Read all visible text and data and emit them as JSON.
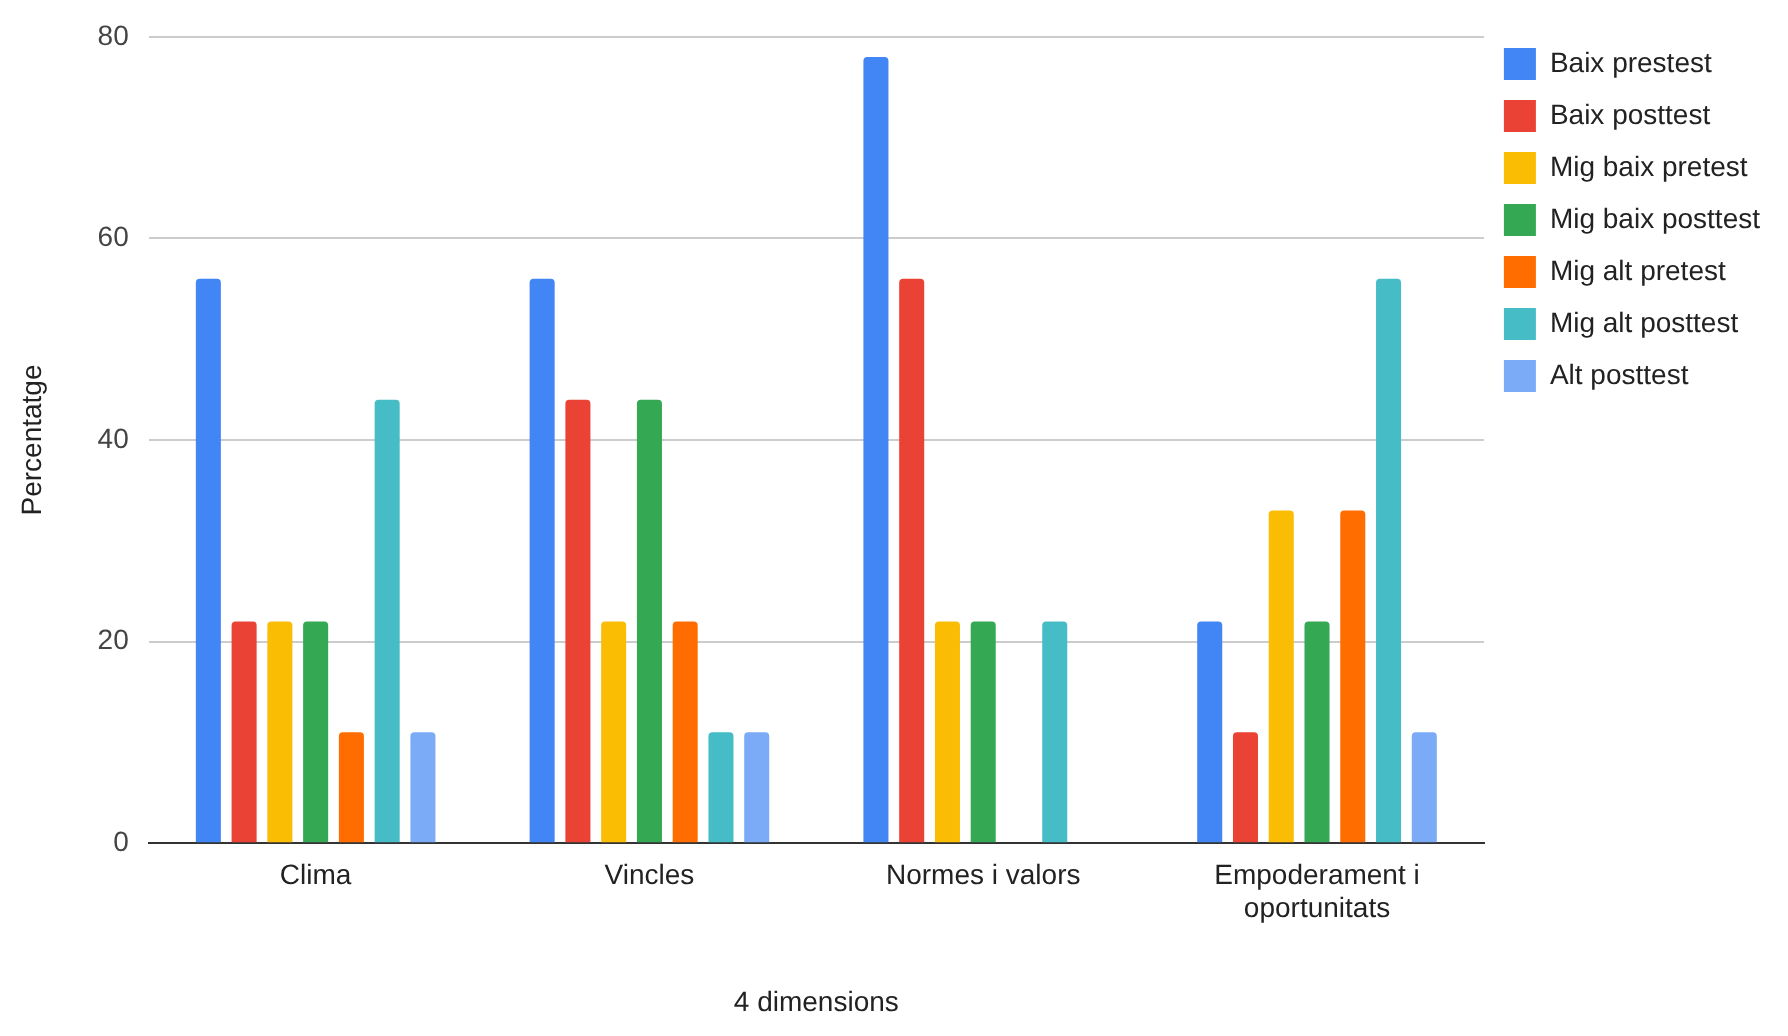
{
  "chart_data": {
    "type": "bar",
    "xlabel": "4 dimensions",
    "ylabel": "Percentatge",
    "categories": [
      "Clima",
      "Vincles",
      "Normes i valors",
      "Empoderament i oportunitats"
    ],
    "series": [
      {
        "name": "Baix prestest",
        "color": "#4285f4",
        "values": [
          56,
          56,
          78,
          22
        ]
      },
      {
        "name": "Baix posttest",
        "color": "#ea4335",
        "values": [
          22,
          44,
          56,
          11
        ]
      },
      {
        "name": "Mig baix pretest",
        "color": "#fbbc04",
        "values": [
          22,
          22,
          22,
          33
        ]
      },
      {
        "name": "Mig baix posttest",
        "color": "#34a853",
        "values": [
          22,
          44,
          22,
          22
        ]
      },
      {
        "name": "Mig alt pretest",
        "color": "#ff6d01",
        "values": [
          11,
          22,
          0,
          33
        ]
      },
      {
        "name": "Mig alt posttest",
        "color": "#46bdc6",
        "values": [
          44,
          11,
          22,
          56
        ]
      },
      {
        "name": "Alt posttest",
        "color": "#7baaf7",
        "values": [
          11,
          11,
          0,
          11
        ]
      }
    ],
    "ylim": [
      0,
      80
    ],
    "yticks": [
      0,
      20,
      40,
      60,
      80
    ],
    "grid": "y",
    "legend": "right"
  }
}
